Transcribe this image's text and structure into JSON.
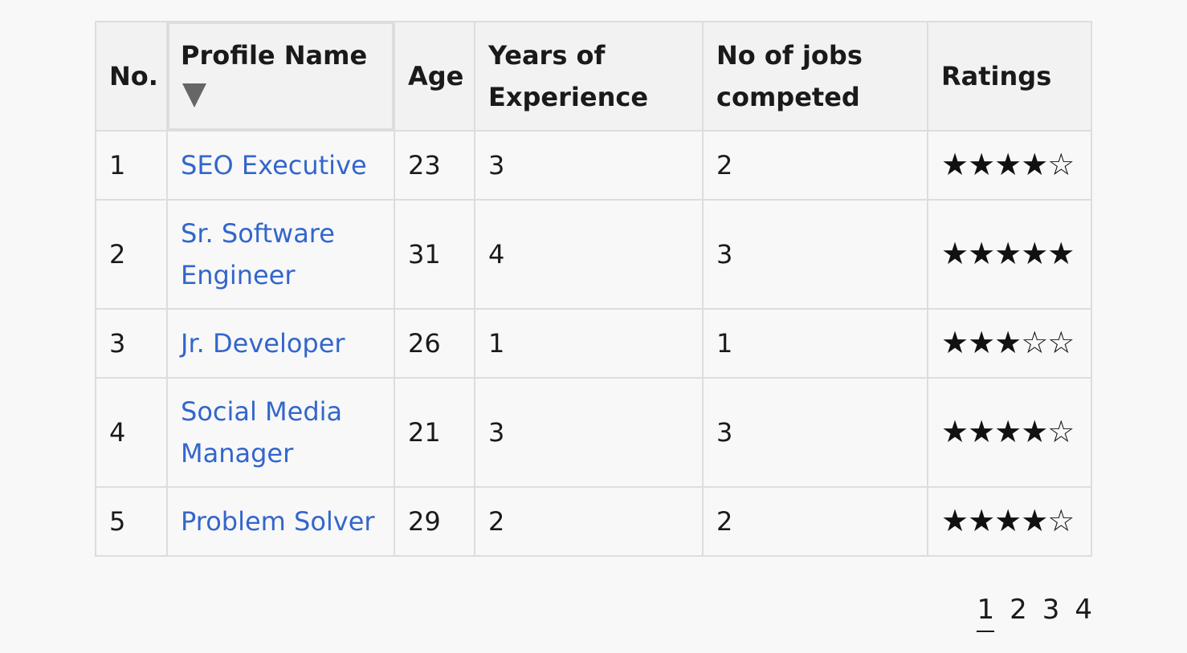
{
  "table": {
    "columns": {
      "no": "No.",
      "profile_name": "Profile Name",
      "age": "Age",
      "years_experience": "Years of Experience",
      "jobs_completed": "No of jobs competed",
      "ratings": "Ratings"
    },
    "sort": {
      "column": "profile_name",
      "direction": "descending",
      "icon": "triangle-down-icon"
    },
    "rows": [
      {
        "no": "1",
        "profile_name": "SEO Executive",
        "age": "23",
        "years": "3",
        "jobs": "2",
        "rating": 4,
        "stars": "★★★★☆"
      },
      {
        "no": "2",
        "profile_name": "Sr. Software Engineer",
        "age": "31",
        "years": "4",
        "jobs": "3",
        "rating": 5,
        "stars": "★★★★★"
      },
      {
        "no": "3",
        "profile_name": "Jr. Developer",
        "age": "26",
        "years": "1",
        "jobs": "1",
        "rating": 3,
        "stars": "★★★☆☆"
      },
      {
        "no": "4",
        "profile_name": "Social Media Manager",
        "age": "21",
        "years": "3",
        "jobs": "3",
        "rating": 4,
        "stars": "★★★★☆"
      },
      {
        "no": "5",
        "profile_name": "Problem Solver",
        "age": "29",
        "years": "2",
        "jobs": "2",
        "rating": 4,
        "stars": "★★★★☆"
      }
    ]
  },
  "pagination": {
    "pages": [
      "1",
      "2",
      "3",
      "4"
    ],
    "current": "1"
  },
  "colors": {
    "link": "#3366cc",
    "header_bg": "#f2f2f2",
    "border": "#dddddd",
    "page_bg": "#f8f8f8"
  }
}
